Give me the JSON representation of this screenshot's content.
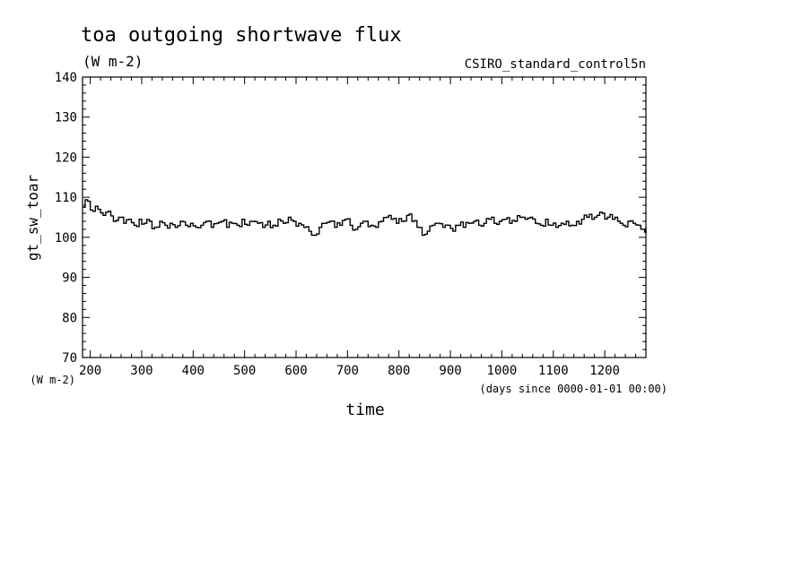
{
  "chart_data": {
    "type": "line",
    "title": "toa outgoing shortwave flux",
    "subtitle": "(W m-2)",
    "run_label": "CSIRO_standard_control5n",
    "ylabel": "gt_sw_toar",
    "y_units": "(W m-2)",
    "xlabel": "time",
    "x_units": "(days since 0000-01-01 00:00)",
    "xlim": [
      185,
      1280
    ],
    "ylim": [
      70,
      140
    ],
    "x_ticks": [
      {
        "value": 200,
        "label": "200"
      },
      {
        "value": 300,
        "label": "300"
      },
      {
        "value": 400,
        "label": "400"
      },
      {
        "value": 500,
        "label": "500"
      },
      {
        "value": 600,
        "label": "600"
      },
      {
        "value": 700,
        "label": "700"
      },
      {
        "value": 800,
        "label": "800"
      },
      {
        "value": 900,
        "label": "900"
      },
      {
        "value": 1000,
        "label": "1000"
      },
      {
        "value": 1100,
        "label": "1100"
      },
      {
        "value": 1200,
        "label": "1200"
      }
    ],
    "y_ticks": [
      {
        "value": 70,
        "label": "70"
      },
      {
        "value": 80,
        "label": "80"
      },
      {
        "value": 90,
        "label": "90"
      },
      {
        "value": 100,
        "label": "100"
      },
      {
        "value": 110,
        "label": "110"
      },
      {
        "value": 120,
        "label": "120"
      },
      {
        "value": 130,
        "label": "130"
      },
      {
        "value": 140,
        "label": "140"
      }
    ],
    "grid": false,
    "series": [
      {
        "color": "#000000",
        "x": [
          185,
          195,
          205,
          215,
          225,
          235,
          245,
          255,
          265,
          275,
          285,
          295,
          305,
          315,
          325,
          335,
          345,
          355,
          365,
          375,
          385,
          395,
          405,
          415,
          425,
          435,
          445,
          455,
          465,
          475,
          485,
          495,
          505,
          515,
          525,
          535,
          545,
          555,
          565,
          575,
          585,
          595,
          605,
          615,
          625,
          635,
          645,
          655,
          665,
          675,
          685,
          695,
          705,
          715,
          725,
          735,
          745,
          755,
          765,
          775,
          785,
          795,
          805,
          815,
          825,
          835,
          845,
          855,
          865,
          875,
          885,
          895,
          905,
          915,
          925,
          935,
          945,
          955,
          965,
          975,
          985,
          995,
          1005,
          1015,
          1025,
          1035,
          1045,
          1055,
          1065,
          1075,
          1085,
          1095,
          1105,
          1115,
          1125,
          1135,
          1145,
          1155,
          1165,
          1175,
          1185,
          1195,
          1205,
          1215,
          1225,
          1235,
          1245,
          1255,
          1265,
          1275,
          1280
        ],
        "values": [
          107.5,
          109.0,
          106.5,
          107.0,
          105.5,
          106.5,
          104.0,
          105.0,
          103.5,
          104.5,
          103.0,
          104.5,
          103.5,
          104.0,
          102.5,
          104.0,
          103.0,
          103.5,
          102.5,
          104.0,
          103.0,
          103.5,
          102.5,
          103.0,
          104.0,
          102.5,
          103.5,
          104.0,
          102.5,
          103.5,
          103.0,
          104.5,
          103.0,
          104.0,
          103.5,
          102.5,
          104.0,
          103.0,
          104.5,
          103.5,
          105.0,
          104.0,
          103.5,
          102.5,
          101.5,
          100.5,
          102.5,
          103.5,
          104.0,
          102.5,
          103.0,
          104.5,
          103.0,
          102.0,
          103.5,
          104.0,
          103.0,
          102.5,
          104.0,
          105.0,
          104.5,
          103.5,
          104.0,
          105.5,
          104.0,
          102.5,
          100.5,
          101.5,
          103.0,
          103.5,
          102.5,
          103.0,
          101.5,
          103.0,
          102.5,
          103.5,
          104.0,
          103.0,
          103.5,
          104.5,
          103.5,
          104.0,
          104.5,
          103.5,
          104.0,
          105.0,
          104.5,
          105.0,
          103.5,
          103.0,
          104.5,
          103.0,
          102.5,
          103.5,
          104.0,
          103.0,
          104.0,
          104.5,
          105.0,
          104.5,
          105.5,
          106.0,
          105.0,
          104.5,
          104.0,
          103.0,
          104.0,
          103.5,
          103.0,
          102.0,
          102.5
        ]
      }
    ]
  }
}
